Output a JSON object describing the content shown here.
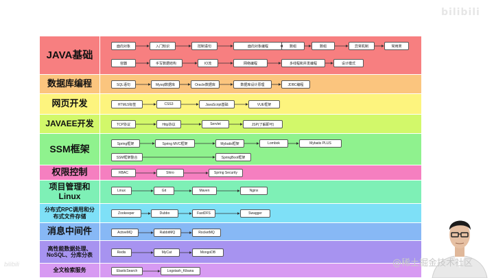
{
  "brand_logo": "bilibili",
  "watermark": "@稀土掘金技术社区",
  "rows": [
    {
      "label": "JAVA基础",
      "color": "#f77f80",
      "items": [
        "面向对象",
        "入门知识",
        "控制语句",
        "面向对象编程",
        "数组",
        "数组",
        "异常机制",
        "常用类",
        "容器",
        "手写数据结构",
        "IO流",
        "网络编程",
        "多线程和并发编程",
        "设计模式"
      ]
    },
    {
      "label": "数据库编程",
      "color": "#fbc57e",
      "items": [
        "SQL语句",
        "Mysql数据库",
        "Oracle数据库",
        "数据库设计原理",
        "JDBC编程"
      ]
    },
    {
      "label": "网页开发",
      "color": "#fdf47e",
      "items": [
        "HTML5标签",
        "CSS3",
        "JavaScript基础",
        "VUE框架"
      ]
    },
    {
      "label": "JAVAEE开发",
      "color": "#d2f86a",
      "items": [
        "TCP协议",
        "Http协议",
        "Servlet",
        "JSP(了解即可)"
      ]
    },
    {
      "label": "SSM框架",
      "color": "#8ff28e",
      "items": [
        "Spring框架",
        "Spring MVC框架",
        "Mybatis框架",
        "Lombok",
        "Mybatis PLUS",
        "SSM框架整合",
        "SpringBoot框架"
      ]
    },
    {
      "label": "权限控制",
      "color": "#f57fc0",
      "items": [
        "RBAC",
        "Shiro",
        "Spring Security"
      ]
    },
    {
      "label": "项目管理和\nLinux",
      "color": "#7ef0b6",
      "items": [
        "Linux",
        "Git",
        "Maven",
        "Nginx"
      ]
    },
    {
      "label": "分布式RPC调用和分\n布式文件存储",
      "color": "#7ee0f7",
      "items": [
        "Zookeeper",
        "Dubbo",
        "FastDFS",
        "Swagger"
      ]
    },
    {
      "label": "消息中间件",
      "color": "#87b8f5",
      "items": [
        "ActiveMQ",
        "RabbitMQ",
        "RocketMQ"
      ]
    },
    {
      "label": "高性能数据处理、\nNoSQL、分库分表",
      "color": "#a793f0",
      "items": [
        "Redis",
        "MyCat",
        "MongoDB"
      ]
    },
    {
      "label": "全文检索服务",
      "color": "#d79af2",
      "items": [
        "ElasticSearch",
        "Logstash_Kibana"
      ]
    }
  ]
}
